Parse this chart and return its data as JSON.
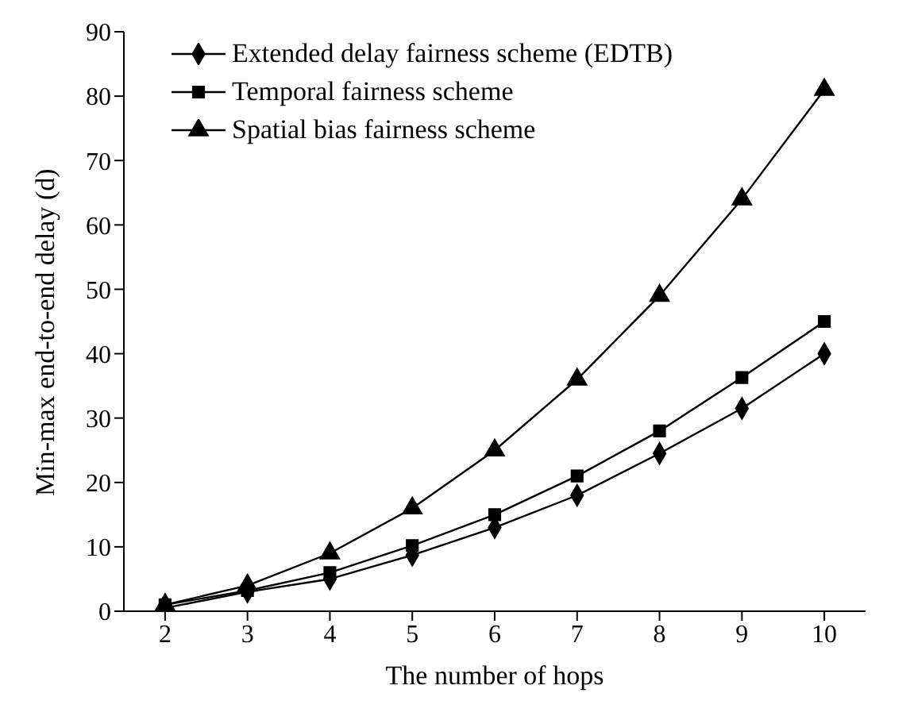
{
  "chart_data": {
    "type": "line",
    "xlabel": "The number of hops",
    "ylabel": "Min-max end-to-end delay (d)",
    "x": [
      2,
      3,
      4,
      5,
      6,
      7,
      8,
      9,
      10
    ],
    "series": [
      {
        "name": "Extended delay fairness scheme (EDTB)",
        "color": "#000000",
        "marker": "diamond",
        "values": [
          0.5,
          3,
          5,
          8.7,
          13,
          18,
          24.5,
          31.5,
          40
        ]
      },
      {
        "name": "Temporal fairness scheme",
        "color": "#000000",
        "marker": "square",
        "values": [
          1,
          3.2,
          6,
          10.2,
          15,
          21,
          28,
          36.3,
          45
        ]
      },
      {
        "name": "Spatial bias fairness scheme",
        "color": "#000000",
        "marker": "triangle",
        "values": [
          1,
          4,
          9,
          16,
          25,
          36,
          49,
          64,
          81
        ]
      }
    ],
    "xlim": [
      1.5,
      10.5
    ],
    "xticks": [
      2,
      3,
      4,
      5,
      6,
      7,
      8,
      9,
      10
    ],
    "ylim": [
      0,
      90
    ],
    "yticks": [
      0,
      10,
      20,
      30,
      40,
      50,
      60,
      70,
      80,
      90
    ],
    "grid": false,
    "legend": "top left",
    "line_style": "solid"
  }
}
